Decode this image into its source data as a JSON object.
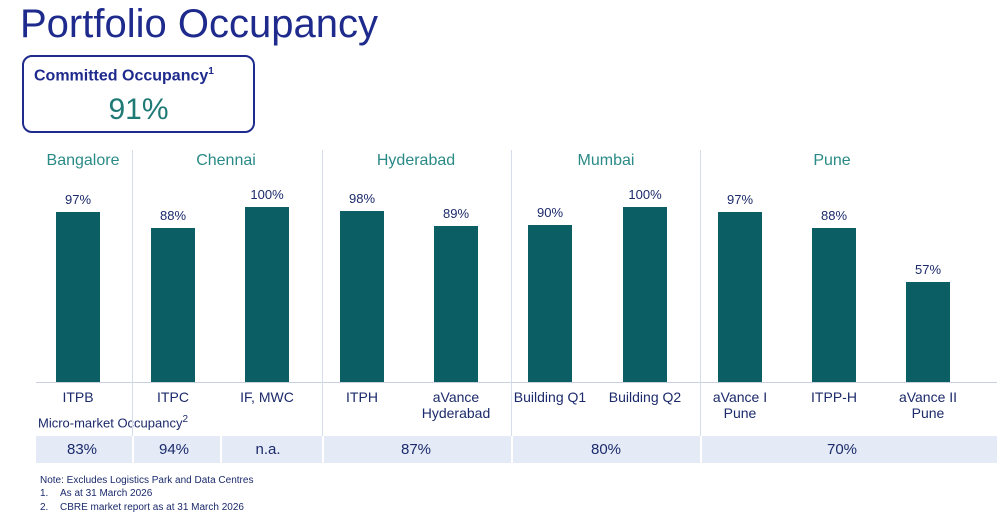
{
  "title": "Portfolio Occupancy",
  "committed": {
    "label": "Committed Occupancy",
    "note_ref": "1",
    "value": "91%"
  },
  "chart_data": {
    "type": "bar",
    "groups": [
      "Bangalore",
      "Chennai",
      "Hyderabad",
      "Mumbai",
      "Pune"
    ],
    "categories": [
      "ITPB",
      "ITPC",
      "IF, MWC",
      "ITPH",
      "aVance Hyderabad",
      "Building Q1",
      "Building Q2",
      "aVance I Pune",
      "ITPP-H",
      "aVance II Pune"
    ],
    "values": [
      97,
      88,
      100,
      98,
      89,
      90,
      100,
      97,
      88,
      57
    ],
    "value_labels": [
      "97%",
      "88%",
      "100%",
      "98%",
      "89%",
      "90%",
      "100%",
      "97%",
      "88%",
      "57%"
    ],
    "color": "#0b5e63"
  },
  "micro_market": {
    "label": "Micro-market Occupancy",
    "note_ref": "2",
    "values": [
      "83%",
      "94%",
      "n.a.",
      "87%",
      "80%",
      "70%"
    ]
  },
  "notes": {
    "heading": "Note: Excludes Logistics Park and Data Centres",
    "items": [
      {
        "num": "1.",
        "text": "As at 31 March 2026"
      },
      {
        "num": "2.",
        "text": "CBRE market report as at 31 March 2026"
      }
    ]
  }
}
